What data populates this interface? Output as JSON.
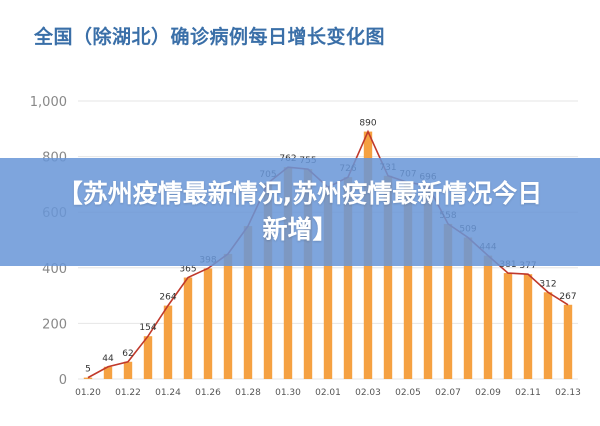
{
  "title": "全国（除湖北）确诊病例每日增长变化图",
  "banner": {
    "text": "【苏州疫情最新情况,苏州疫情最新情况今日新增】"
  },
  "colors": {
    "bar": "#f5a142",
    "line": "#c0392b",
    "grid": "#e6e6e6",
    "banner": "#6996d7",
    "title": "#3a6fa8"
  },
  "chart_data": {
    "type": "bar",
    "title": "全国（除湖北）确诊病例每日增长变化图",
    "xlabel": "",
    "ylabel": "",
    "ylim": [
      0,
      1000
    ],
    "yticks": [
      "0",
      "200",
      "400",
      "600",
      "800",
      "1,000"
    ],
    "grid": true,
    "xtick_labels": [
      "01.20",
      "01.22",
      "01.24",
      "01.26",
      "01.28",
      "01.30",
      "02.01",
      "02.03",
      "02.05",
      "02.07",
      "02.09",
      "02.11",
      "02.13"
    ],
    "categories": [
      "01.20",
      "01.21",
      "01.22",
      "01.23",
      "01.24",
      "01.25",
      "01.26",
      "01.27",
      "01.28",
      "01.29",
      "01.30",
      "01.31",
      "02.01",
      "02.02",
      "02.03",
      "02.04",
      "02.05",
      "02.06",
      "02.07",
      "02.08",
      "02.09",
      "02.10",
      "02.11",
      "02.12",
      "02.13"
    ],
    "values": [
      5,
      44,
      62,
      154,
      264,
      365,
      398,
      450,
      550,
      705,
      762,
      755,
      690,
      726,
      890,
      731,
      707,
      696,
      558,
      509,
      444,
      381,
      377,
      312,
      267
    ],
    "data_labels": [
      "5",
      "44",
      "62",
      "154",
      "264",
      "365",
      "398",
      "",
      "",
      "705",
      "762",
      "755",
      "",
      "726",
      "890",
      "731",
      "707",
      "696",
      "558",
      "509",
      "444",
      "381",
      "377",
      "312",
      "267"
    ],
    "overlay_line": true
  }
}
